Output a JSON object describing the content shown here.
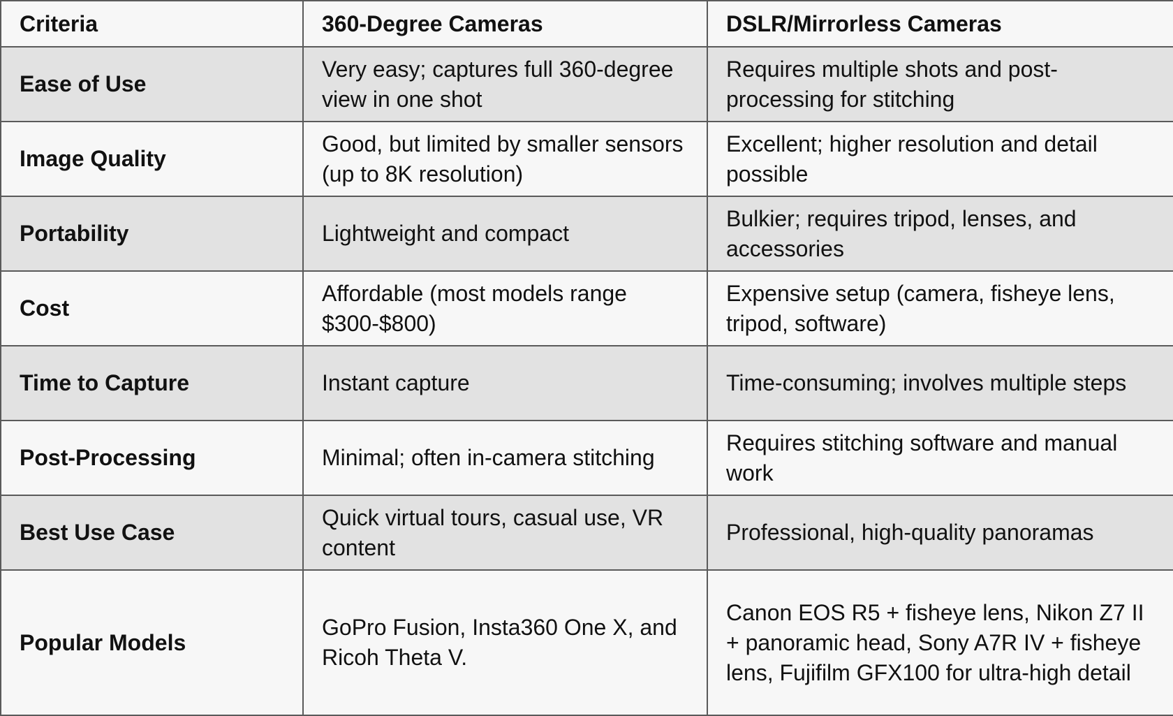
{
  "table": {
    "headers": [
      "Criteria",
      "360-Degree Cameras",
      "DSLR/Mirrorless Cameras"
    ],
    "rows": [
      {
        "criteria": "Ease of Use",
        "cam360": "Very easy; captures full 360-degree view in one shot",
        "dslr": "Requires multiple shots and post-processing for stitching"
      },
      {
        "criteria": "Image Quality",
        "cam360": "Good, but limited by smaller sensors (up to 8K resolution)",
        "dslr": "Excellent; higher resolution and detail possible"
      },
      {
        "criteria": "Portability",
        "cam360": "Lightweight and compact",
        "dslr": "Bulkier; requires tripod, lenses, and accessories"
      },
      {
        "criteria": "Cost",
        "cam360": "Affordable (most models range $300-$800)",
        "dslr": "Expensive setup (camera, fisheye lens, tripod, software)"
      },
      {
        "criteria": "Time to Capture",
        "cam360": "Instant capture",
        "dslr": "Time-consuming; involves multiple steps"
      },
      {
        "criteria": "Post-Processing",
        "cam360": "Minimal; often in-camera stitching",
        "dslr": "Requires stitching software and manual work"
      },
      {
        "criteria": "Best Use Case",
        "cam360": "Quick virtual tours, casual use, VR content",
        "dslr": "Professional, high-quality panoramas"
      },
      {
        "criteria": "Popular Models",
        "cam360": "GoPro Fusion, Insta360 One X, and Ricoh Theta V.",
        "dslr": "Canon EOS R5 + fisheye lens, Nikon Z7 II + panoramic head, Sony A7R IV + fisheye lens, Fujifilm GFX100 for ultra-high detail"
      }
    ]
  }
}
